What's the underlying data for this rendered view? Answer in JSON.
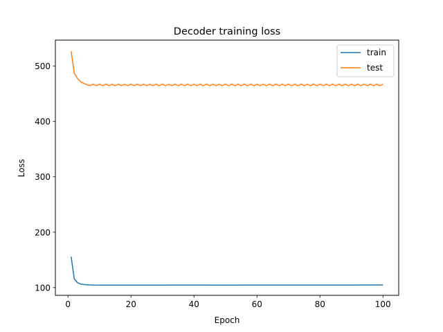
{
  "chart_data": {
    "type": "line",
    "title": "Decoder training loss",
    "xlabel": "Epoch",
    "ylabel": "Loss",
    "xlim": [
      -4,
      105
    ],
    "ylim": [
      86,
      547
    ],
    "xticks": [
      0,
      20,
      40,
      60,
      80,
      100
    ],
    "yticks": [
      100,
      200,
      300,
      400,
      500
    ],
    "grid": false,
    "legend_position": "top-right",
    "series": [
      {
        "name": "train",
        "color": "#1f77b4",
        "points": [
          [
            1,
            156
          ],
          [
            2,
            116
          ],
          [
            3,
            109
          ],
          [
            4,
            106.5
          ],
          [
            5,
            105.5
          ],
          [
            6,
            105
          ],
          [
            7,
            104.8
          ],
          [
            8,
            104.6
          ],
          [
            10,
            104.5
          ],
          [
            15,
            104.5
          ],
          [
            20,
            104.5
          ],
          [
            30,
            104.5
          ],
          [
            40,
            104.6
          ],
          [
            50,
            104.5
          ],
          [
            60,
            104.6
          ],
          [
            70,
            104.6
          ],
          [
            80,
            104.6
          ],
          [
            90,
            104.6
          ],
          [
            100,
            104.7
          ]
        ]
      },
      {
        "name": "test",
        "color": "#ff7f0e",
        "start_points": [
          [
            1,
            527
          ],
          [
            2,
            487
          ],
          [
            3,
            478
          ],
          [
            4,
            472
          ],
          [
            5,
            469
          ],
          [
            6,
            466.5
          ]
        ],
        "oscillation": {
          "from": 6,
          "to": 100,
          "center": 466,
          "amplitude": 1.3
        }
      }
    ]
  }
}
